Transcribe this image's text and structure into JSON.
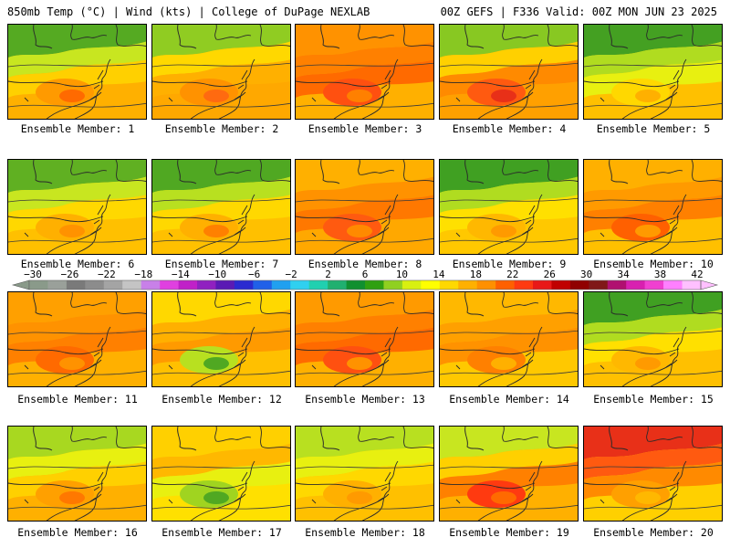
{
  "header": {
    "left": "850mb Temp (°C) | Wind (kts) | College of DuPage NEXLAB",
    "right": "00Z GEFS | F336 Valid: 00Z MON JUN 23 2025"
  },
  "colorbar": {
    "labels": [
      "−30",
      "−26",
      "−22",
      "−18",
      "−14",
      "−10",
      "−6",
      "−2",
      "2",
      "6",
      "10",
      "14",
      "18",
      "22",
      "26",
      "30",
      "34",
      "38",
      "42"
    ],
    "colors": [
      "#8a9a8a",
      "#9aa09a",
      "#7a7a7a",
      "#8c8c8c",
      "#a4a4a4",
      "#c4c4c4",
      "#c880e8",
      "#e040e0",
      "#c020c8",
      "#9020c0",
      "#5a1ab4",
      "#2a2ad0",
      "#2060e8",
      "#20a0f0",
      "#30d0f0",
      "#20d0b0",
      "#20b070",
      "#109030",
      "#30a010",
      "#90d020",
      "#d8f010",
      "#ffff00",
      "#ffd800",
      "#ffb000",
      "#ff9000",
      "#ff6000",
      "#ff3a10",
      "#e81818",
      "#c00000",
      "#900000",
      "#801818",
      "#b01070",
      "#d820b0",
      "#f040d0",
      "#ff80ff",
      "#ffc0ff"
    ]
  },
  "panels": [
    {
      "label": "Ensemble Member: 1",
      "colors": [
        "#55aa22",
        "#c8e620",
        "#ffd000",
        "#ff9a00",
        "#ff6a00",
        "#ffb000"
      ]
    },
    {
      "label": "Ensemble Member: 2",
      "colors": [
        "#90cc22",
        "#ffd800",
        "#ffb000",
        "#ff9200",
        "#ff6a10",
        "#ffa800"
      ]
    },
    {
      "label": "Ensemble Member: 3",
      "colors": [
        "#ff9200",
        "#ff8000",
        "#ff6a00",
        "#ff5010",
        "#ff8000",
        "#ffb000"
      ]
    },
    {
      "label": "Ensemble Member: 4",
      "colors": [
        "#88c822",
        "#ffd000",
        "#ff8a00",
        "#ff5a10",
        "#e83018",
        "#ffa000"
      ]
    },
    {
      "label": "Ensemble Member: 5",
      "colors": [
        "#44a022",
        "#b0dc20",
        "#e8f010",
        "#ffd800",
        "#ffb000",
        "#ffc000"
      ]
    },
    {
      "label": "Ensemble Member: 6",
      "colors": [
        "#60b022",
        "#c8e620",
        "#ffd800",
        "#ffb000",
        "#ff9200",
        "#ffc000"
      ]
    },
    {
      "label": "Ensemble Member: 7",
      "colors": [
        "#50a822",
        "#b8e020",
        "#ffd800",
        "#ffb000",
        "#ff8000",
        "#ffc000"
      ]
    },
    {
      "label": "Ensemble Member: 8",
      "colors": [
        "#ffb000",
        "#ff9200",
        "#ff7800",
        "#ff5a10",
        "#ff8a00",
        "#ffa800"
      ]
    },
    {
      "label": "Ensemble Member: 9",
      "colors": [
        "#40a022",
        "#b0dc20",
        "#ffe000",
        "#ffb800",
        "#ff9a00",
        "#ffc800"
      ]
    },
    {
      "label": "Ensemble Member: 10",
      "colors": [
        "#ffb000",
        "#ff9a00",
        "#ff8000",
        "#ff6000",
        "#ff9a00",
        "#ffc000"
      ]
    },
    {
      "label": "Ensemble Member: 11",
      "colors": [
        "#ffa000",
        "#ff9200",
        "#ff8000",
        "#ff6a00",
        "#ff9200",
        "#ffb000"
      ]
    },
    {
      "label": "Ensemble Member: 12",
      "colors": [
        "#ffd800",
        "#ffb000",
        "#ff9a00",
        "#b8e020",
        "#50a822",
        "#ffc000"
      ]
    },
    {
      "label": "Ensemble Member: 13",
      "colors": [
        "#ff9a00",
        "#ff8000",
        "#ff6a00",
        "#ff5010",
        "#ff9200",
        "#ffb000"
      ]
    },
    {
      "label": "Ensemble Member: 14",
      "colors": [
        "#ffb800",
        "#ffa000",
        "#ff9200",
        "#ff8000",
        "#ffb000",
        "#ffc800"
      ]
    },
    {
      "label": "Ensemble Member: 15",
      "colors": [
        "#40a022",
        "#b0dc20",
        "#ffe000",
        "#ffb800",
        "#ff9a00",
        "#ffc000"
      ]
    },
    {
      "label": "Ensemble Member: 16",
      "colors": [
        "#a8d820",
        "#e8f010",
        "#ffd000",
        "#ffa000",
        "#ff7800",
        "#ffb000"
      ]
    },
    {
      "label": "Ensemble Member: 17",
      "colors": [
        "#ffd000",
        "#ffb800",
        "#e8f010",
        "#a0d420",
        "#50a822",
        "#ffe000"
      ]
    },
    {
      "label": "Ensemble Member: 18",
      "colors": [
        "#b8e020",
        "#e8f010",
        "#ffd800",
        "#ffb000",
        "#ff9a00",
        "#ffc000"
      ]
    },
    {
      "label": "Ensemble Member: 19",
      "colors": [
        "#c8e620",
        "#ffd000",
        "#ff8000",
        "#ff3a10",
        "#ff6a00",
        "#ffb000"
      ]
    },
    {
      "label": "Ensemble Member: 20",
      "colors": [
        "#e83018",
        "#ff5a10",
        "#ff8a00",
        "#ffa000",
        "#ffb800",
        "#ffd000"
      ]
    }
  ]
}
